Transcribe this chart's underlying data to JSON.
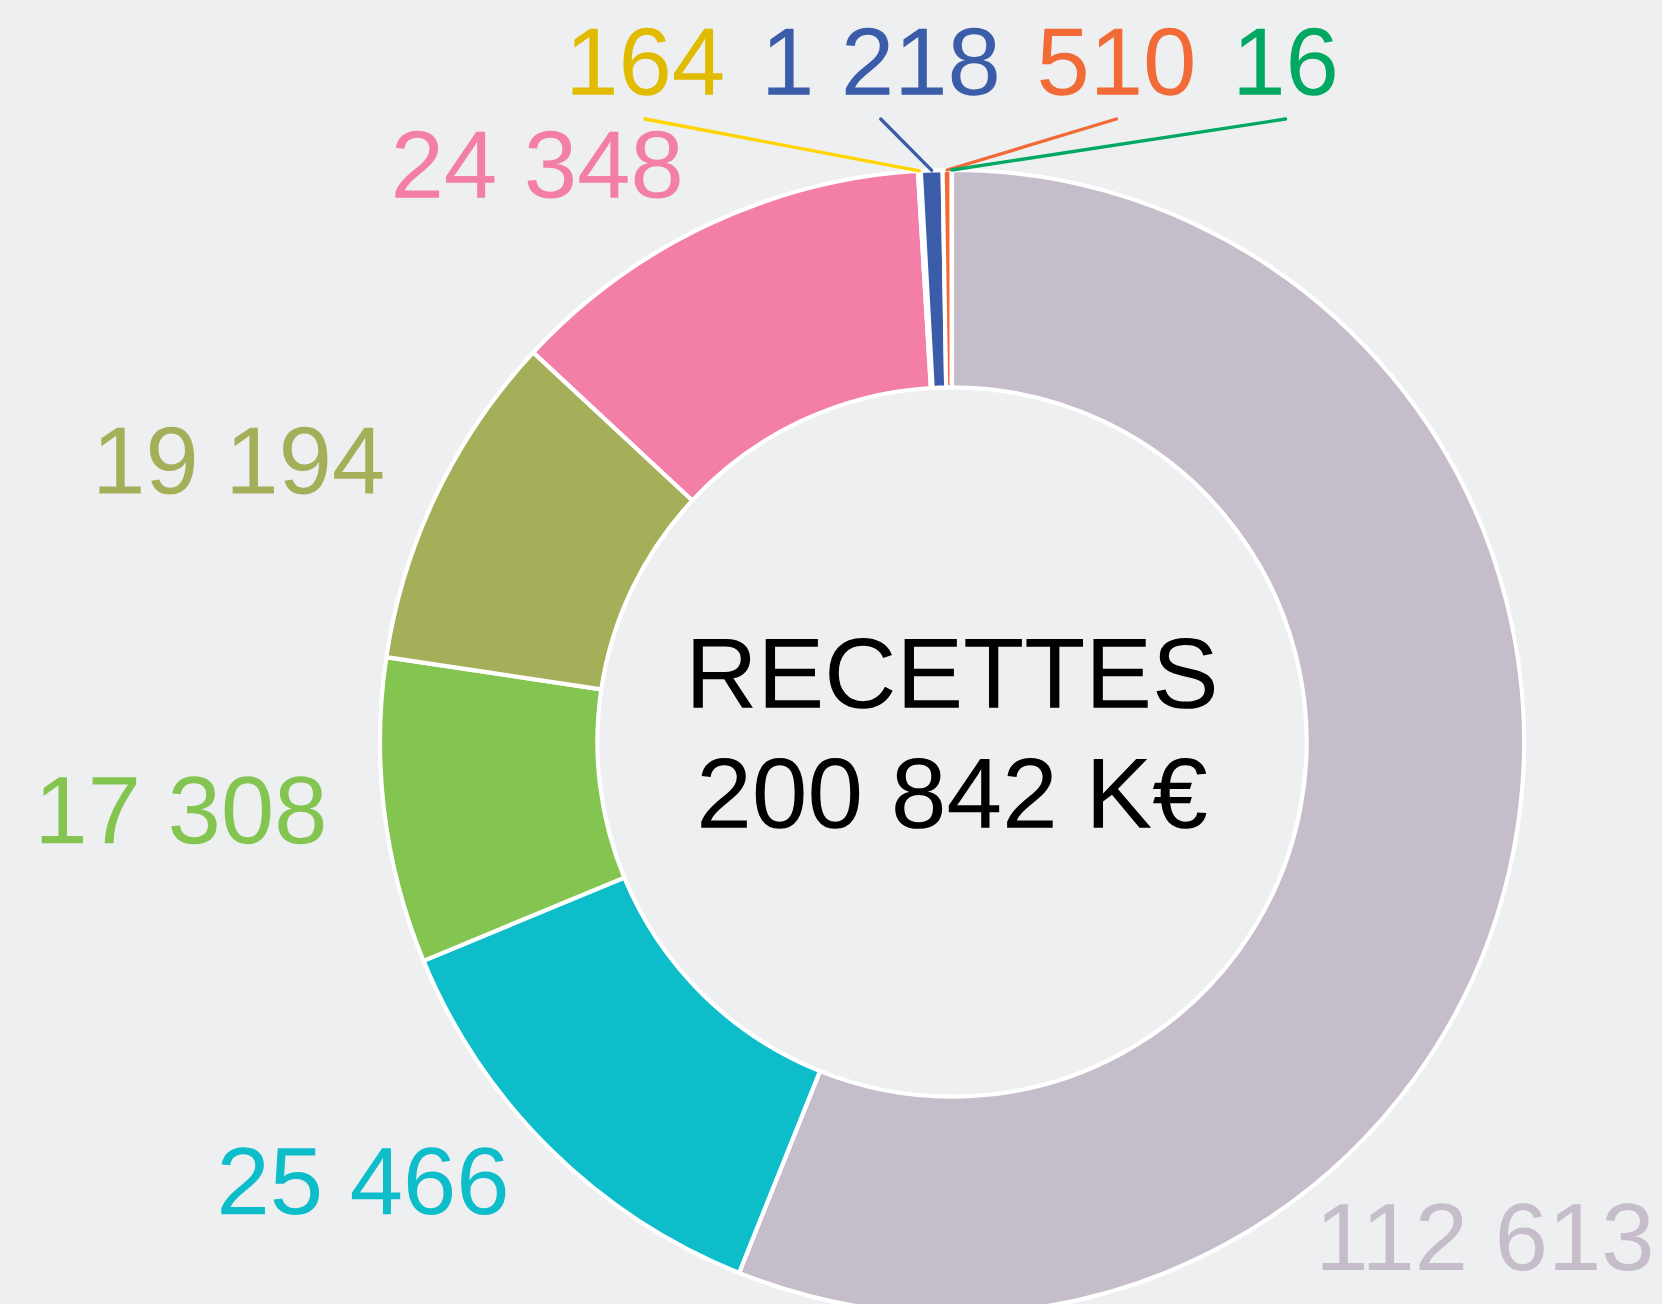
{
  "chart_data": {
    "type": "donut",
    "title": "RECETTES",
    "subtitle": "200 842 K€",
    "categories": [
      null,
      null,
      null,
      null,
      null,
      null,
      null,
      null,
      null
    ],
    "values": [
      112613,
      25466,
      17308,
      19194,
      24348,
      164,
      1218,
      510,
      16
    ],
    "value_labels": [
      "112 613",
      "25 466",
      "17 308",
      "19 194",
      "24 348",
      "164",
      "1 218",
      "510",
      "16"
    ],
    "colors": [
      "#c5bdc9",
      "#0ebdca",
      "#83c550",
      "#a5af5a",
      "#f37ea8",
      "#ffd400",
      "#3a5ca9",
      "#f26b36",
      "#00a862"
    ]
  }
}
